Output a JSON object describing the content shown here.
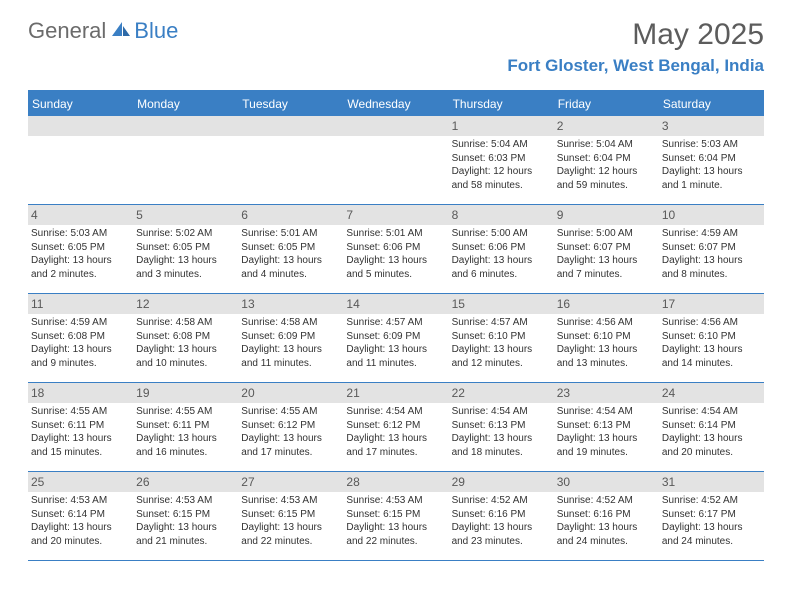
{
  "logo": {
    "general": "General",
    "blue": "Blue"
  },
  "title": "May 2025",
  "location": "Fort Gloster, West Bengal, India",
  "colors": {
    "accent": "#3a7fc4",
    "header_text": "#ffffff",
    "day_num_bg": "#e3e3e3",
    "day_num_text": "#595959",
    "body_text": "#323232",
    "title_text": "#5c5c5c",
    "logo_gray": "#6b6b6b"
  },
  "day_headers": [
    "Sunday",
    "Monday",
    "Tuesday",
    "Wednesday",
    "Thursday",
    "Friday",
    "Saturday"
  ],
  "weeks": [
    [
      {
        "empty": true
      },
      {
        "empty": true
      },
      {
        "empty": true
      },
      {
        "empty": true
      },
      {
        "num": "1",
        "sunrise": "Sunrise: 5:04 AM",
        "sunset": "Sunset: 6:03 PM",
        "daylight": "Daylight: 12 hours and 58 minutes."
      },
      {
        "num": "2",
        "sunrise": "Sunrise: 5:04 AM",
        "sunset": "Sunset: 6:04 PM",
        "daylight": "Daylight: 12 hours and 59 minutes."
      },
      {
        "num": "3",
        "sunrise": "Sunrise: 5:03 AM",
        "sunset": "Sunset: 6:04 PM",
        "daylight": "Daylight: 13 hours and 1 minute."
      }
    ],
    [
      {
        "num": "4",
        "sunrise": "Sunrise: 5:03 AM",
        "sunset": "Sunset: 6:05 PM",
        "daylight": "Daylight: 13 hours and 2 minutes."
      },
      {
        "num": "5",
        "sunrise": "Sunrise: 5:02 AM",
        "sunset": "Sunset: 6:05 PM",
        "daylight": "Daylight: 13 hours and 3 minutes."
      },
      {
        "num": "6",
        "sunrise": "Sunrise: 5:01 AM",
        "sunset": "Sunset: 6:05 PM",
        "daylight": "Daylight: 13 hours and 4 minutes."
      },
      {
        "num": "7",
        "sunrise": "Sunrise: 5:01 AM",
        "sunset": "Sunset: 6:06 PM",
        "daylight": "Daylight: 13 hours and 5 minutes."
      },
      {
        "num": "8",
        "sunrise": "Sunrise: 5:00 AM",
        "sunset": "Sunset: 6:06 PM",
        "daylight": "Daylight: 13 hours and 6 minutes."
      },
      {
        "num": "9",
        "sunrise": "Sunrise: 5:00 AM",
        "sunset": "Sunset: 6:07 PM",
        "daylight": "Daylight: 13 hours and 7 minutes."
      },
      {
        "num": "10",
        "sunrise": "Sunrise: 4:59 AM",
        "sunset": "Sunset: 6:07 PM",
        "daylight": "Daylight: 13 hours and 8 minutes."
      }
    ],
    [
      {
        "num": "11",
        "sunrise": "Sunrise: 4:59 AM",
        "sunset": "Sunset: 6:08 PM",
        "daylight": "Daylight: 13 hours and 9 minutes."
      },
      {
        "num": "12",
        "sunrise": "Sunrise: 4:58 AM",
        "sunset": "Sunset: 6:08 PM",
        "daylight": "Daylight: 13 hours and 10 minutes."
      },
      {
        "num": "13",
        "sunrise": "Sunrise: 4:58 AM",
        "sunset": "Sunset: 6:09 PM",
        "daylight": "Daylight: 13 hours and 11 minutes."
      },
      {
        "num": "14",
        "sunrise": "Sunrise: 4:57 AM",
        "sunset": "Sunset: 6:09 PM",
        "daylight": "Daylight: 13 hours and 11 minutes."
      },
      {
        "num": "15",
        "sunrise": "Sunrise: 4:57 AM",
        "sunset": "Sunset: 6:10 PM",
        "daylight": "Daylight: 13 hours and 12 minutes."
      },
      {
        "num": "16",
        "sunrise": "Sunrise: 4:56 AM",
        "sunset": "Sunset: 6:10 PM",
        "daylight": "Daylight: 13 hours and 13 minutes."
      },
      {
        "num": "17",
        "sunrise": "Sunrise: 4:56 AM",
        "sunset": "Sunset: 6:10 PM",
        "daylight": "Daylight: 13 hours and 14 minutes."
      }
    ],
    [
      {
        "num": "18",
        "sunrise": "Sunrise: 4:55 AM",
        "sunset": "Sunset: 6:11 PM",
        "daylight": "Daylight: 13 hours and 15 minutes."
      },
      {
        "num": "19",
        "sunrise": "Sunrise: 4:55 AM",
        "sunset": "Sunset: 6:11 PM",
        "daylight": "Daylight: 13 hours and 16 minutes."
      },
      {
        "num": "20",
        "sunrise": "Sunrise: 4:55 AM",
        "sunset": "Sunset: 6:12 PM",
        "daylight": "Daylight: 13 hours and 17 minutes."
      },
      {
        "num": "21",
        "sunrise": "Sunrise: 4:54 AM",
        "sunset": "Sunset: 6:12 PM",
        "daylight": "Daylight: 13 hours and 17 minutes."
      },
      {
        "num": "22",
        "sunrise": "Sunrise: 4:54 AM",
        "sunset": "Sunset: 6:13 PM",
        "daylight": "Daylight: 13 hours and 18 minutes."
      },
      {
        "num": "23",
        "sunrise": "Sunrise: 4:54 AM",
        "sunset": "Sunset: 6:13 PM",
        "daylight": "Daylight: 13 hours and 19 minutes."
      },
      {
        "num": "24",
        "sunrise": "Sunrise: 4:54 AM",
        "sunset": "Sunset: 6:14 PM",
        "daylight": "Daylight: 13 hours and 20 minutes."
      }
    ],
    [
      {
        "num": "25",
        "sunrise": "Sunrise: 4:53 AM",
        "sunset": "Sunset: 6:14 PM",
        "daylight": "Daylight: 13 hours and 20 minutes."
      },
      {
        "num": "26",
        "sunrise": "Sunrise: 4:53 AM",
        "sunset": "Sunset: 6:15 PM",
        "daylight": "Daylight: 13 hours and 21 minutes."
      },
      {
        "num": "27",
        "sunrise": "Sunrise: 4:53 AM",
        "sunset": "Sunset: 6:15 PM",
        "daylight": "Daylight: 13 hours and 22 minutes."
      },
      {
        "num": "28",
        "sunrise": "Sunrise: 4:53 AM",
        "sunset": "Sunset: 6:15 PM",
        "daylight": "Daylight: 13 hours and 22 minutes."
      },
      {
        "num": "29",
        "sunrise": "Sunrise: 4:52 AM",
        "sunset": "Sunset: 6:16 PM",
        "daylight": "Daylight: 13 hours and 23 minutes."
      },
      {
        "num": "30",
        "sunrise": "Sunrise: 4:52 AM",
        "sunset": "Sunset: 6:16 PM",
        "daylight": "Daylight: 13 hours and 24 minutes."
      },
      {
        "num": "31",
        "sunrise": "Sunrise: 4:52 AM",
        "sunset": "Sunset: 6:17 PM",
        "daylight": "Daylight: 13 hours and 24 minutes."
      }
    ]
  ]
}
